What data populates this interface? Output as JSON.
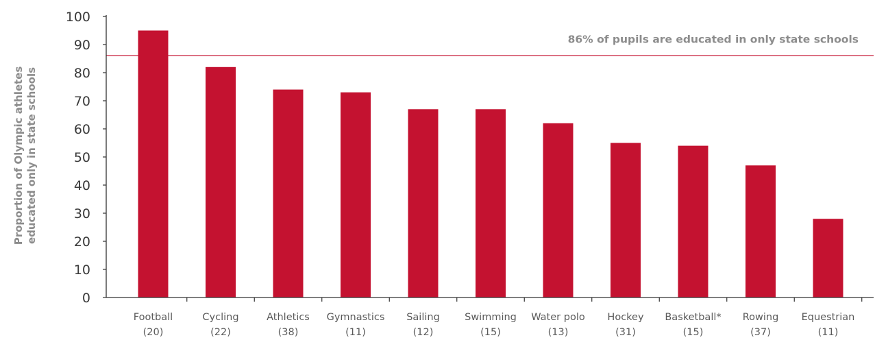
{
  "chart_data": {
    "type": "bar",
    "categories": [
      {
        "name": "Football",
        "count": "(20)"
      },
      {
        "name": "Cycling",
        "count": "(22)"
      },
      {
        "name": "Athletics",
        "count": "(38)"
      },
      {
        "name": "Gymnastics",
        "count": "(11)"
      },
      {
        "name": "Sailing",
        "count": "(12)"
      },
      {
        "name": "Swimming",
        "count": "(15)"
      },
      {
        "name": "Water polo",
        "count": "(13)"
      },
      {
        "name": "Hockey",
        "count": "(31)"
      },
      {
        "name": "Basketball*",
        "count": "(15)"
      },
      {
        "name": "Rowing",
        "count": "(37)"
      },
      {
        "name": "Equestrian",
        "count": "(11)"
      }
    ],
    "values": [
      95,
      82,
      74,
      73,
      67,
      67,
      62,
      55,
      54,
      47,
      28
    ],
    "ylabel_lines": [
      "Proportion of Olympic athletes",
      "educated only in state schools"
    ],
    "ylim": [
      0,
      100
    ],
    "yticks": [
      0,
      10,
      20,
      30,
      40,
      50,
      60,
      70,
      80,
      90,
      100
    ],
    "grid": false,
    "legend": "none",
    "reference_line": {
      "value": 86,
      "label": "86% of pupils are educated in only state schools"
    },
    "colors": {
      "bar": "#c41230",
      "reference_line": "#c41230",
      "axis": "#333333"
    }
  }
}
